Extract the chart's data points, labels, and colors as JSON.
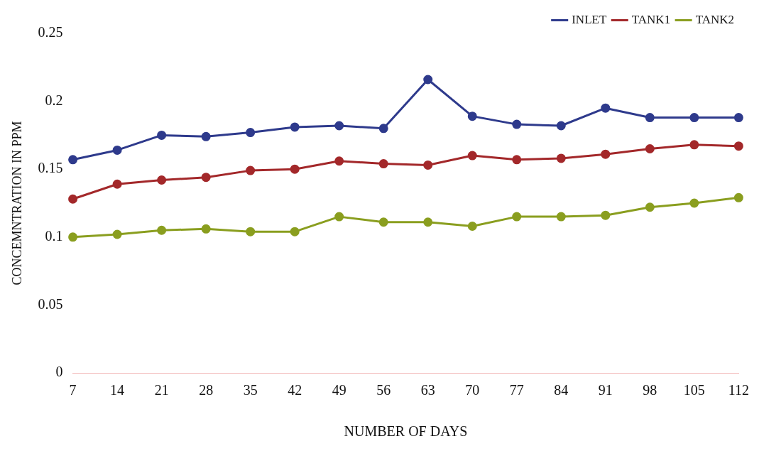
{
  "chart_data": {
    "type": "line",
    "xlabel": "NUMBER OF DAYS",
    "ylabel": "CONCEMNTRATION IN PPM",
    "categories": [
      "7",
      "14",
      "21",
      "28",
      "35",
      "42",
      "49",
      "56",
      "63",
      "70",
      "77",
      "84",
      "91",
      "98",
      "105",
      "112"
    ],
    "series": [
      {
        "name": "INLET",
        "color": "#2e3a8c",
        "values": [
          0.157,
          0.164,
          0.175,
          0.174,
          0.177,
          0.181,
          0.182,
          0.18,
          0.216,
          0.189,
          0.183,
          0.182,
          0.195,
          0.188,
          0.188,
          0.188
        ]
      },
      {
        "name": "TANK1",
        "color": "#a3282a",
        "values": [
          0.128,
          0.139,
          0.142,
          0.144,
          0.149,
          0.15,
          0.156,
          0.154,
          0.153,
          0.16,
          0.157,
          0.158,
          0.161,
          0.165,
          0.168,
          0.167
        ]
      },
      {
        "name": "TANK2",
        "color": "#8a9e1f",
        "values": [
          0.1,
          0.102,
          0.105,
          0.106,
          0.104,
          0.104,
          0.115,
          0.111,
          0.111,
          0.108,
          0.115,
          0.115,
          0.116,
          0.122,
          0.125,
          0.129
        ]
      }
    ],
    "ylim": [
      0,
      0.25
    ],
    "yticks": [
      0,
      0.05,
      0.1,
      0.15,
      0.2,
      0.25
    ],
    "grid": false,
    "legend": "top right",
    "marker": "circle",
    "line_style": "solid"
  }
}
